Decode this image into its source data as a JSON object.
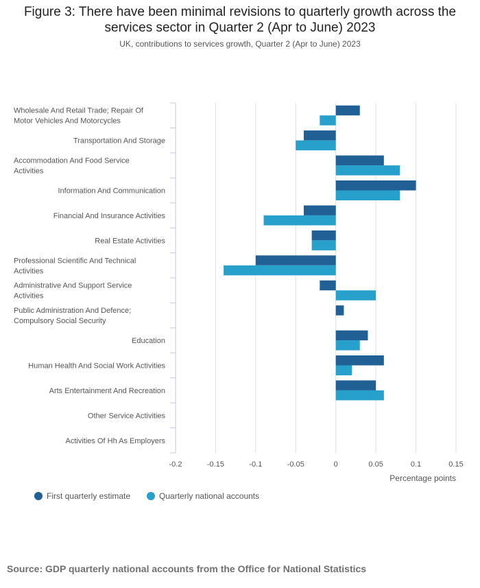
{
  "title": "Figure 3: There have been minimal revisions to quarterly growth across the services sector in Quarter 2 (Apr to June) 2023",
  "subtitle": "UK, contributions to services growth, Quarter 2 (Apr to June) 2023",
  "source": "Source: GDP quarterly national accounts from the Office for National Statistics",
  "chart_data": {
    "type": "bar",
    "orientation": "horizontal",
    "title": "Figure 3: There have been minimal revisions to quarterly growth across the services sector in Quarter 2 (Apr to June) 2023",
    "xlabel": "Percentage points",
    "xlim": [
      -0.2,
      0.15
    ],
    "xticks": [
      -0.2,
      -0.15,
      -0.1,
      -0.05,
      0,
      0.05,
      0.1,
      0.15
    ],
    "xtick_labels": [
      "-0.2",
      "-0.15",
      "-0.1",
      "-0.05",
      "0",
      "0.05",
      "0.1",
      "0.15"
    ],
    "grid": true,
    "legend_position": "bottom-left",
    "categories": [
      [
        "Wholesale And Retail Trade; Repair Of",
        "Motor Vehicles And Motorcycles"
      ],
      [
        "Transportation And Storage"
      ],
      [
        "Accommodation And Food Service",
        "Activities"
      ],
      [
        "Information And Communication"
      ],
      [
        "Financial And Insurance Activities"
      ],
      [
        "Real Estate Activities"
      ],
      [
        "Professional Scientific And Technical",
        "Activities"
      ],
      [
        "Administrative And Support Service",
        "Activities"
      ],
      [
        "Public Administration And Defence;",
        "Compulsory Social Security"
      ],
      [
        "Education"
      ],
      [
        "Human Health And Social Work Activities"
      ],
      [
        "Arts Entertainment And Recreation"
      ],
      [
        "Other Service Activities"
      ],
      [
        "Activities Of Hh As Employers"
      ]
    ],
    "series": [
      {
        "name": "First quarterly estimate",
        "color": "#206095",
        "values": [
          0.03,
          -0.04,
          0.06,
          0.1,
          -0.04,
          -0.03,
          -0.1,
          -0.02,
          0.01,
          0.04,
          0.06,
          0.05,
          0,
          0
        ]
      },
      {
        "name": "Quarterly national accounts",
        "color": "#27a0cc",
        "values": [
          -0.02,
          -0.05,
          0.08,
          0.08,
          -0.09,
          -0.03,
          -0.14,
          0.05,
          0,
          0.03,
          0.02,
          0.06,
          0,
          0
        ]
      }
    ]
  }
}
